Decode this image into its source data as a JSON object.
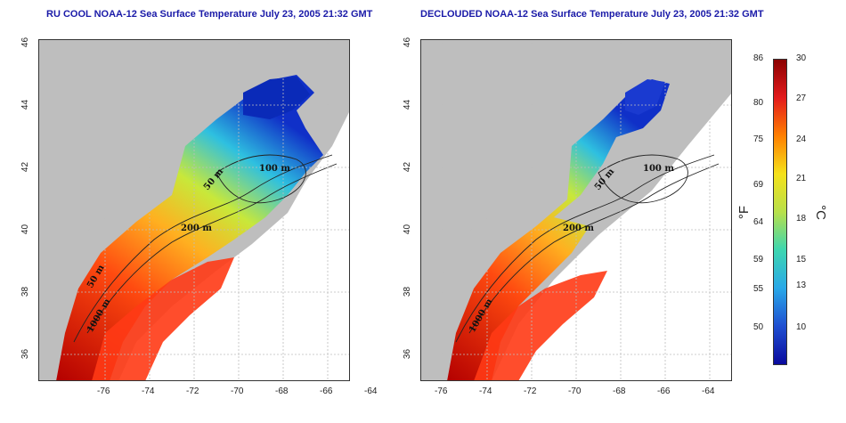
{
  "maps": [
    {
      "title": "RU COOL NOAA-12 Sea Surface Temperature July 23, 2005 21:32 GMT"
    },
    {
      "title": "DECLOUDED NOAA-12 Sea Surface Temperature July 23, 2005 21:32 GMT"
    }
  ],
  "axes": {
    "lon_ticks": [
      "-76",
      "-74",
      "-72",
      "-70",
      "-68",
      "-66",
      "-64"
    ],
    "lat_ticks": [
      "46",
      "44",
      "42",
      "40",
      "38",
      "36"
    ],
    "lon_range": [
      -77,
      -63
    ],
    "lat_range": [
      35,
      46
    ]
  },
  "contour_labels": [
    "100 m",
    "50 m",
    "200 m",
    "50 m",
    "1000 m"
  ],
  "colorbar": {
    "fahrenheit_ticks": [
      "86",
      "80",
      "75",
      "69",
      "64",
      "59",
      "55",
      "50"
    ],
    "celsius_ticks": [
      "30",
      "27",
      "24",
      "21",
      "18",
      "15",
      "13",
      "10"
    ],
    "fahrenheit_unit": "°F",
    "celsius_unit": "°C",
    "colors": [
      "#8b0000",
      "#e31a1c",
      "#ff7f00",
      "#f5e11a",
      "#b8e04a",
      "#3dd6b0",
      "#29a8e8",
      "#1f4fd1",
      "#0a0a9e"
    ]
  },
  "colors": {
    "land": "#bebebe",
    "no_data": "#ffffff",
    "title": "#1a1aa8"
  }
}
